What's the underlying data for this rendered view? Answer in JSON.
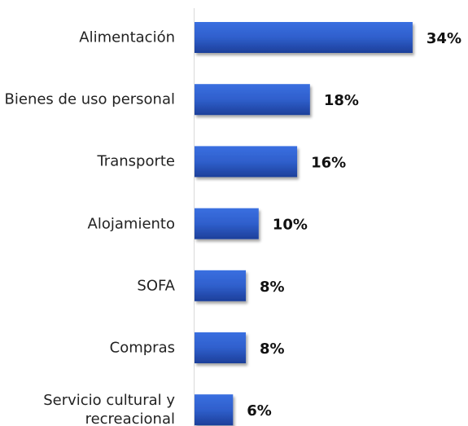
{
  "chart_data": {
    "type": "bar",
    "orientation": "horizontal",
    "categories": [
      "Alimentación",
      "Bienes de uso personal",
      "Transporte",
      "Alojamiento",
      "SOFA",
      "Compras",
      "Servicio cultural y recreacional"
    ],
    "values": [
      34,
      18,
      16,
      10,
      8,
      8,
      6
    ],
    "value_labels": [
      "34%",
      "18%",
      "16%",
      "10%",
      "8%",
      "8%",
      "6%"
    ],
    "color": "#2f5fcc"
  }
}
